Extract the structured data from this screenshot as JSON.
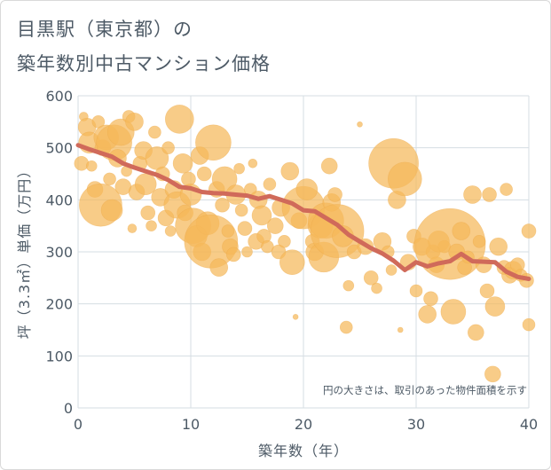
{
  "title_line1": "目黒駅（東京都）の",
  "title_line2": "築年数別中古マンション価格",
  "chart_data": {
    "type": "scatter",
    "xlabel": "築年数（年）",
    "ylabel": "坪（3.3㎡）単価（万円）",
    "xlim": [
      0,
      40
    ],
    "ylim": [
      0,
      600
    ],
    "xticks": [
      0,
      10,
      20,
      30,
      40
    ],
    "yticks": [
      0,
      100,
      200,
      300,
      400,
      500,
      600
    ],
    "grid": true,
    "annotation": "円の大きさは、取引のあった物件面積を示す",
    "colors": {
      "bubble": "#f5b85a",
      "trend": "#d06a5a",
      "grid": "#d5dde3",
      "text": "#4d5a66"
    },
    "points": [
      [
        0.3,
        470,
        8
      ],
      [
        0.5,
        560,
        5
      ],
      [
        0.8,
        540,
        10
      ],
      [
        1,
        510,
        12
      ],
      [
        1.2,
        465,
        6
      ],
      [
        1.5,
        420,
        9
      ],
      [
        1.8,
        550,
        7
      ],
      [
        2,
        390,
        24
      ],
      [
        2.2,
        500,
        9
      ],
      [
        2.5,
        520,
        14
      ],
      [
        2.8,
        440,
        7
      ],
      [
        3,
        380,
        12
      ],
      [
        3.2,
        510,
        20
      ],
      [
        3.5,
        480,
        10
      ],
      [
        3.8,
        530,
        15
      ],
      [
        4,
        425,
        9
      ],
      [
        4.3,
        455,
        6
      ],
      [
        4.5,
        560,
        7
      ],
      [
        4.8,
        345,
        5
      ],
      [
        5,
        550,
        10
      ],
      [
        5.2,
        415,
        9
      ],
      [
        5.5,
        470,
        8
      ],
      [
        5.8,
        495,
        10
      ],
      [
        6,
        430,
        12
      ],
      [
        6.2,
        375,
        8
      ],
      [
        6.5,
        350,
        6
      ],
      [
        6.8,
        530,
        7
      ],
      [
        7,
        480,
        13
      ],
      [
        7.3,
        405,
        10
      ],
      [
        7.5,
        450,
        8
      ],
      [
        7.8,
        365,
        9
      ],
      [
        8,
        500,
        7
      ],
      [
        8.2,
        340,
        6
      ],
      [
        8.5,
        420,
        10
      ],
      [
        8.8,
        390,
        15
      ],
      [
        9,
        555,
        16
      ],
      [
        9.3,
        470,
        11
      ],
      [
        9.5,
        375,
        9
      ],
      [
        9.8,
        440,
        8
      ],
      [
        10,
        410,
        12
      ],
      [
        10.2,
        350,
        20
      ],
      [
        10.5,
        330,
        12
      ],
      [
        10.8,
        485,
        10
      ],
      [
        11,
        300,
        10
      ],
      [
        11.2,
        450,
        8
      ],
      [
        11.5,
        355,
        13
      ],
      [
        11.8,
        320,
        30
      ],
      [
        12,
        510,
        20
      ],
      [
        12.3,
        420,
        9
      ],
      [
        12.5,
        270,
        10
      ],
      [
        12.8,
        390,
        8
      ],
      [
        13,
        440,
        14
      ],
      [
        13.3,
        340,
        7
      ],
      [
        13.5,
        310,
        9
      ],
      [
        13.8,
        295,
        8
      ],
      [
        14,
        410,
        11
      ],
      [
        14.3,
        460,
        6
      ],
      [
        14.5,
        380,
        7
      ],
      [
        14.8,
        345,
        8
      ],
      [
        15,
        300,
        6
      ],
      [
        15.3,
        420,
        7
      ],
      [
        15.5,
        470,
        5
      ],
      [
        15.8,
        320,
        9
      ],
      [
        16,
        400,
        10
      ],
      [
        16.3,
        370,
        11
      ],
      [
        16.5,
        330,
        8
      ],
      [
        16.8,
        310,
        7
      ],
      [
        17,
        430,
        7
      ],
      [
        17.5,
        350,
        9
      ],
      [
        17.8,
        300,
        8
      ],
      [
        18,
        385,
        10
      ],
      [
        18.3,
        320,
        7
      ],
      [
        18.8,
        455,
        10
      ],
      [
        19,
        280,
        14
      ],
      [
        19.3,
        175,
        3
      ],
      [
        19.6,
        360,
        9
      ],
      [
        20,
        385,
        24
      ],
      [
        20.3,
        420,
        12
      ],
      [
        20.8,
        320,
        8
      ],
      [
        21,
        300,
        10
      ],
      [
        21.5,
        350,
        14
      ],
      [
        21.8,
        290,
        17
      ],
      [
        22,
        360,
        20
      ],
      [
        22.3,
        465,
        9
      ],
      [
        22.5,
        395,
        10
      ],
      [
        22.8,
        410,
        8
      ],
      [
        23,
        340,
        30
      ],
      [
        23.5,
        330,
        12
      ],
      [
        23.8,
        155,
        7
      ],
      [
        24,
        235,
        6
      ],
      [
        24.5,
        300,
        8
      ],
      [
        25,
        545,
        3
      ],
      [
        25.5,
        310,
        9
      ],
      [
        26,
        250,
        8
      ],
      [
        26.5,
        230,
        6
      ],
      [
        27,
        320,
        10
      ],
      [
        27.5,
        300,
        7
      ],
      [
        27.8,
        265,
        6
      ],
      [
        28,
        470,
        28
      ],
      [
        28.3,
        400,
        10
      ],
      [
        28.6,
        150,
        3
      ],
      [
        29,
        440,
        19
      ],
      [
        29.3,
        280,
        9
      ],
      [
        29.8,
        330,
        8
      ],
      [
        30,
        225,
        7
      ],
      [
        30.5,
        310,
        10
      ],
      [
        31,
        180,
        10
      ],
      [
        31.3,
        210,
        8
      ],
      [
        31.5,
        300,
        8
      ],
      [
        31.8,
        275,
        9
      ],
      [
        32,
        320,
        12
      ],
      [
        32.5,
        310,
        7
      ],
      [
        33,
        315,
        40
      ],
      [
        33.3,
        185,
        14
      ],
      [
        33.6,
        300,
        9
      ],
      [
        34,
        340,
        10
      ],
      [
        34.3,
        270,
        8
      ],
      [
        34.6,
        290,
        7
      ],
      [
        35,
        410,
        10
      ],
      [
        35.3,
        145,
        9
      ],
      [
        35.6,
        320,
        7
      ],
      [
        36,
        275,
        9
      ],
      [
        36.3,
        225,
        8
      ],
      [
        36.5,
        410,
        8
      ],
      [
        36.8,
        65,
        9
      ],
      [
        37,
        195,
        11
      ],
      [
        37.3,
        310,
        10
      ],
      [
        37.8,
        270,
        8
      ],
      [
        38,
        420,
        7
      ],
      [
        38.3,
        255,
        9
      ],
      [
        38.6,
        265,
        10
      ],
      [
        39,
        275,
        8
      ],
      [
        39.3,
        255,
        7
      ],
      [
        39.8,
        245,
        8
      ],
      [
        40,
        340,
        8
      ],
      [
        40,
        160,
        7
      ]
    ],
    "trend": [
      [
        0,
        505
      ],
      [
        1,
        497
      ],
      [
        2,
        490
      ],
      [
        3,
        483
      ],
      [
        4,
        470
      ],
      [
        5,
        462
      ],
      [
        6,
        455
      ],
      [
        7,
        448
      ],
      [
        8,
        438
      ],
      [
        9,
        425
      ],
      [
        10,
        422
      ],
      [
        11,
        415
      ],
      [
        12,
        413
      ],
      [
        13,
        412
      ],
      [
        14,
        410
      ],
      [
        15,
        408
      ],
      [
        16,
        402
      ],
      [
        17,
        407
      ],
      [
        18,
        400
      ],
      [
        19,
        393
      ],
      [
        20,
        380
      ],
      [
        21,
        378
      ],
      [
        22,
        365
      ],
      [
        23,
        352
      ],
      [
        24,
        333
      ],
      [
        25,
        320
      ],
      [
        26,
        307
      ],
      [
        27,
        297
      ],
      [
        28,
        283
      ],
      [
        29,
        265
      ],
      [
        30,
        280
      ],
      [
        31,
        272
      ],
      [
        32,
        278
      ],
      [
        33,
        282
      ],
      [
        34,
        296
      ],
      [
        35,
        282
      ],
      [
        36,
        281
      ],
      [
        37,
        280
      ],
      [
        38,
        262
      ],
      [
        39,
        252
      ],
      [
        40,
        248
      ]
    ]
  }
}
